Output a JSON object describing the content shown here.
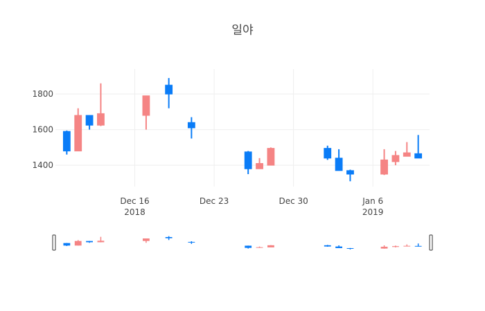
{
  "chart_data": {
    "type": "candlestick",
    "title": "일야",
    "colors": {
      "increasing": "#f58484",
      "decreasing": "#0a7cf7"
    },
    "xlim": [
      "2018-12-09",
      "2019-01-11"
    ],
    "ylim": [
      1280,
      1940
    ],
    "y_ticks": [
      1400,
      1600,
      1800
    ],
    "x_ticks": [
      {
        "date": "2018-12-16",
        "label": "Dec 16",
        "sub": "2018"
      },
      {
        "date": "2018-12-23",
        "label": "Dec 23",
        "sub": ""
      },
      {
        "date": "2018-12-30",
        "label": "Dec 30",
        "sub": ""
      },
      {
        "date": "2019-01-06",
        "label": "Jan 6",
        "sub": "2019"
      }
    ],
    "grid": true,
    "rangeslider": true,
    "candles": [
      {
        "date": "2018-12-10",
        "open": 1590,
        "high": 1595,
        "low": 1460,
        "close": 1480
      },
      {
        "date": "2018-12-11",
        "open": 1480,
        "high": 1720,
        "low": 1480,
        "close": 1680
      },
      {
        "date": "2018-12-12",
        "open": 1680,
        "high": 1680,
        "low": 1600,
        "close": 1625
      },
      {
        "date": "2018-12-13",
        "open": 1625,
        "high": 1860,
        "low": 1620,
        "close": 1690
      },
      {
        "date": "2018-12-17",
        "open": 1680,
        "high": 1790,
        "low": 1600,
        "close": 1790
      },
      {
        "date": "2018-12-19",
        "open": 1850,
        "high": 1890,
        "low": 1720,
        "close": 1800
      },
      {
        "date": "2018-12-21",
        "open": 1640,
        "high": 1670,
        "low": 1550,
        "close": 1610
      },
      {
        "date": "2018-12-26",
        "open": 1475,
        "high": 1480,
        "low": 1350,
        "close": 1380
      },
      {
        "date": "2018-12-27",
        "open": 1380,
        "high": 1440,
        "low": 1380,
        "close": 1410
      },
      {
        "date": "2018-12-28",
        "open": 1400,
        "high": 1500,
        "low": 1400,
        "close": 1495
      },
      {
        "date": "2019-01-02",
        "open": 1495,
        "high": 1510,
        "low": 1430,
        "close": 1440
      },
      {
        "date": "2019-01-03",
        "open": 1440,
        "high": 1490,
        "low": 1370,
        "close": 1370
      },
      {
        "date": "2019-01-04",
        "open": 1370,
        "high": 1375,
        "low": 1310,
        "close": 1350
      },
      {
        "date": "2019-01-07",
        "open": 1350,
        "high": 1490,
        "low": 1345,
        "close": 1430
      },
      {
        "date": "2019-01-08",
        "open": 1420,
        "high": 1480,
        "low": 1400,
        "close": 1455
      },
      {
        "date": "2019-01-09",
        "open": 1450,
        "high": 1530,
        "low": 1450,
        "close": 1470
      },
      {
        "date": "2019-01-10",
        "open": 1465,
        "high": 1570,
        "low": 1440,
        "close": 1440
      }
    ]
  }
}
